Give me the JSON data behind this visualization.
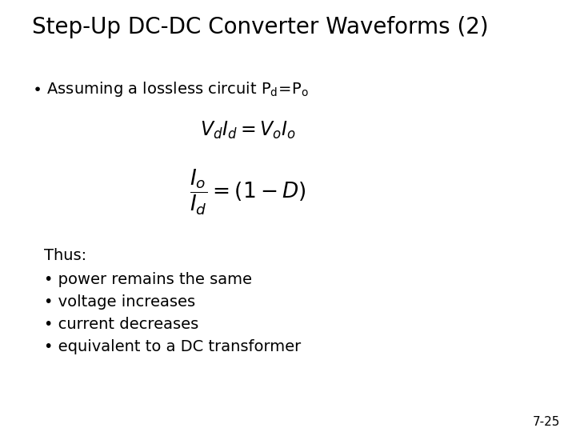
{
  "title": "Step-Up DC-DC Converter Waveforms (2)",
  "title_fontsize": 20,
  "background_color": "#ffffff",
  "text_color": "#000000",
  "eq1_latex": "$V_d I_d = V_o I_o$",
  "eq2_latex": "$\\dfrac{I_o}{I_d} = (1-D)$",
  "thus_label": "Thus:",
  "bullet_items": [
    "power remains the same",
    "voltage increases",
    "current decreases",
    "equivalent to a DC transformer"
  ],
  "page_number": "7-25",
  "body_fontsize": 14,
  "eq_fontsize": 17,
  "small_fontsize": 11
}
